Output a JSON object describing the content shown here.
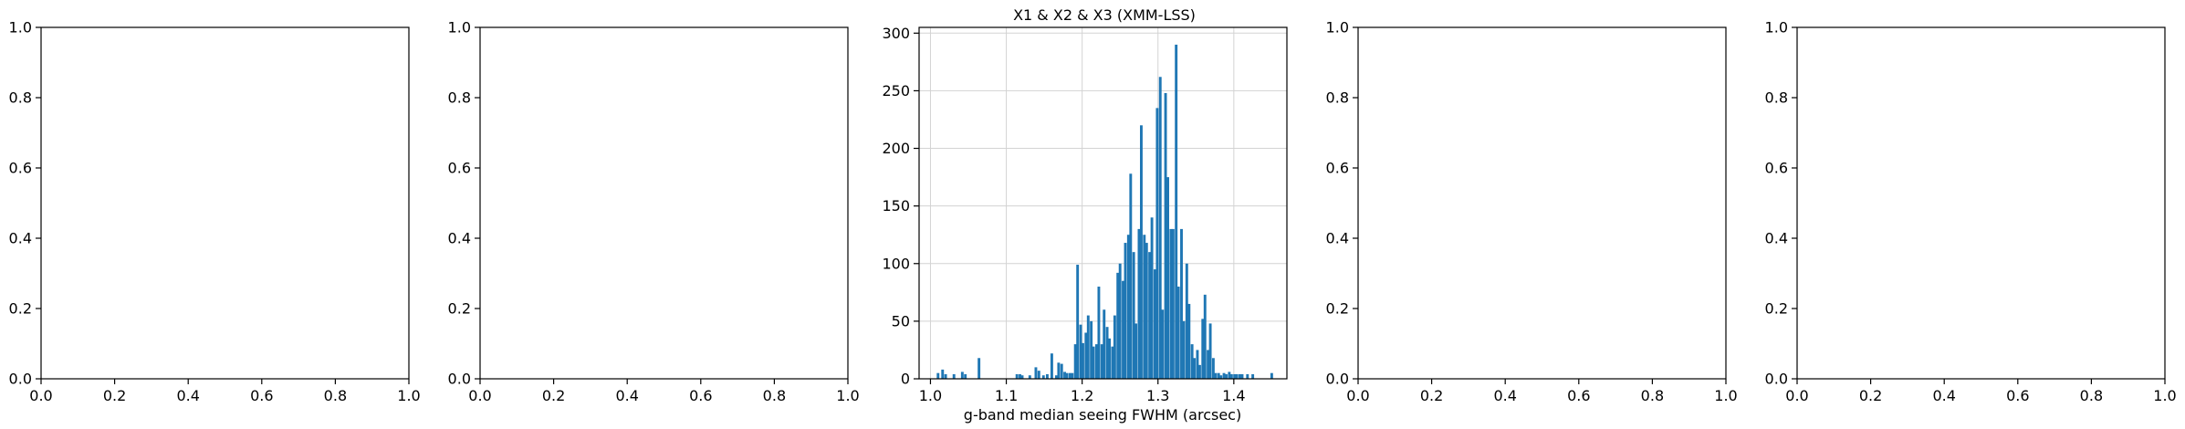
{
  "chart_data": [
    {
      "type": "empty",
      "xlim": [
        0,
        1
      ],
      "ylim": [
        0,
        1
      ],
      "xticks": [
        "0.0",
        "0.2",
        "0.4",
        "0.6",
        "0.8",
        "1.0"
      ],
      "yticks": [
        "0.0",
        "0.2",
        "0.4",
        "0.6",
        "0.8",
        "1.0"
      ],
      "grid": false
    },
    {
      "type": "empty",
      "xlim": [
        0,
        1
      ],
      "ylim": [
        0,
        1
      ],
      "xticks": [
        "0.0",
        "0.2",
        "0.4",
        "0.6",
        "0.8",
        "1.0"
      ],
      "yticks": [
        "0.0",
        "0.2",
        "0.4",
        "0.6",
        "0.8",
        "1.0"
      ],
      "grid": false
    },
    {
      "type": "bar",
      "title": "X1 & X2 & X3 (XMM-LSS)",
      "xlabel": "g-band median seeing FWHM (arcsec)",
      "ylabel": "",
      "xlim": [
        0.985,
        1.47
      ],
      "ylim": [
        0,
        305
      ],
      "xticks": [
        "1.0",
        "1.1",
        "1.2",
        "1.3",
        "1.4"
      ],
      "yticks": [
        "0",
        "50",
        "100",
        "150",
        "200",
        "250",
        "300"
      ],
      "grid": true,
      "color": "#1f77b4",
      "bin_width": 0.0035,
      "x": [
        1.01,
        1.016,
        1.02,
        1.031,
        1.042,
        1.046,
        1.064,
        1.114,
        1.118,
        1.121,
        1.131,
        1.139,
        1.143,
        1.149,
        1.154,
        1.16,
        1.166,
        1.169,
        1.173,
        1.177,
        1.18,
        1.184,
        1.187,
        1.191,
        1.194,
        1.198,
        1.201,
        1.205,
        1.208,
        1.212,
        1.215,
        1.219,
        1.222,
        1.226,
        1.229,
        1.233,
        1.236,
        1.24,
        1.243,
        1.247,
        1.25,
        1.254,
        1.257,
        1.261,
        1.264,
        1.268,
        1.271,
        1.275,
        1.278,
        1.282,
        1.285,
        1.289,
        1.292,
        1.296,
        1.299,
        1.303,
        1.306,
        1.31,
        1.313,
        1.317,
        1.32,
        1.324,
        1.327,
        1.331,
        1.334,
        1.338,
        1.341,
        1.345,
        1.348,
        1.352,
        1.355,
        1.359,
        1.362,
        1.366,
        1.369,
        1.373,
        1.376,
        1.38,
        1.383,
        1.387,
        1.39,
        1.394,
        1.397,
        1.401,
        1.404,
        1.408,
        1.411,
        1.418,
        1.425,
        1.45
      ],
      "values": [
        5,
        8,
        4,
        4,
        6,
        4,
        18,
        4,
        4,
        3,
        3,
        10,
        7,
        3,
        4,
        22,
        3,
        14,
        13,
        6,
        5,
        5,
        5,
        30,
        99,
        47,
        31,
        40,
        55,
        50,
        28,
        30,
        80,
        30,
        60,
        45,
        35,
        28,
        55,
        92,
        100,
        85,
        118,
        125,
        178,
        110,
        48,
        130,
        220,
        125,
        118,
        110,
        140,
        95,
        235,
        262,
        60,
        248,
        175,
        130,
        130,
        290,
        80,
        130,
        50,
        100,
        65,
        30,
        18,
        25,
        12,
        52,
        73,
        25,
        48,
        18,
        5,
        5,
        3,
        5,
        4,
        6,
        4,
        4,
        4,
        4,
        4,
        4,
        4,
        5
      ],
      "values_note_removed": null
    },
    {
      "type": "empty",
      "xlim": [
        0,
        1
      ],
      "ylim": [
        0,
        1
      ],
      "xticks": [
        "0.0",
        "0.2",
        "0.4",
        "0.6",
        "0.8",
        "1.0"
      ],
      "yticks": [
        "0.0",
        "0.2",
        "0.4",
        "0.6",
        "0.8",
        "1.0"
      ],
      "grid": false
    },
    {
      "type": "empty",
      "xlim": [
        0,
        1
      ],
      "ylim": [
        0,
        1
      ],
      "xticks": [
        "0.0",
        "0.2",
        "0.4",
        "0.6",
        "0.8",
        "1.0"
      ],
      "yticks": [
        "0.0",
        "0.2",
        "0.4",
        "0.6",
        "0.8",
        "1.0"
      ],
      "grid": false
    }
  ]
}
